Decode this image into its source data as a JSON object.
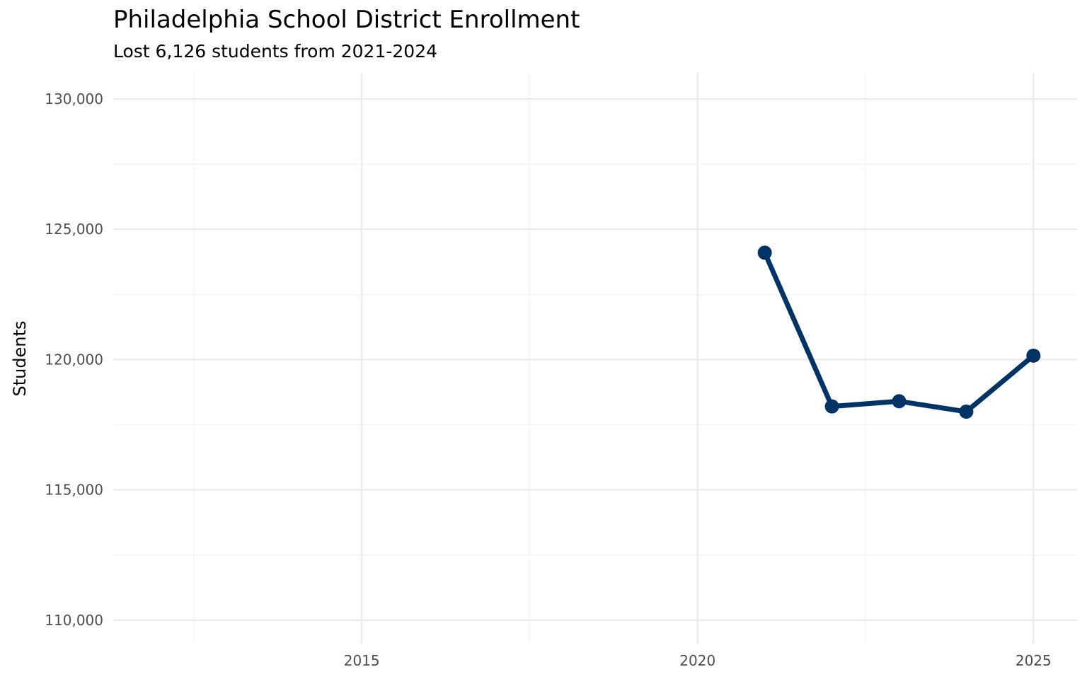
{
  "chart_data": {
    "type": "line",
    "title": "Philadelphia School District Enrollment",
    "subtitle": "Lost 6,126 students from 2021-2024",
    "xlabel": "",
    "ylabel": "Students",
    "xlim": [
      2011.3,
      2025.65
    ],
    "ylim": [
      109100,
      131000
    ],
    "x_ticks": [
      2015,
      2020,
      2025
    ],
    "x_tick_labels": [
      "2015",
      "2020",
      "2025"
    ],
    "y_ticks": [
      110000,
      115000,
      120000,
      125000,
      130000
    ],
    "y_tick_labels": [
      "110,000",
      "115,000",
      "120,000",
      "125,000",
      "130,000"
    ],
    "grid": true,
    "series": [
      {
        "color": "#003366",
        "x": [
          2021,
          2022,
          2023,
          2024,
          2025
        ],
        "values": [
          124100,
          118200,
          118400,
          118000,
          120150
        ]
      }
    ]
  }
}
